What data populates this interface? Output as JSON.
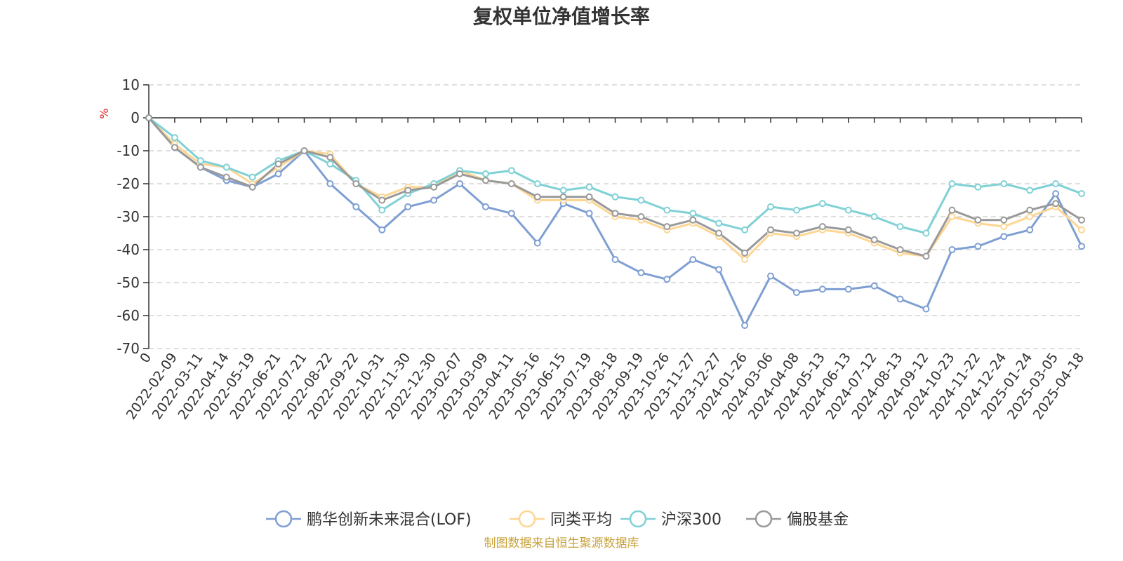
{
  "chart_data": {
    "type": "line",
    "title": "复权单位净值增长率",
    "ylabel": "%",
    "xlabel": "",
    "ylim": [
      -70,
      10
    ],
    "yticks": [
      10,
      0,
      -10,
      -20,
      -30,
      -40,
      -50,
      -60,
      -70
    ],
    "grid": true,
    "legend_position": "bottom-center",
    "categories": [
      "0",
      "2022-02-09",
      "2022-03-11",
      "2022-04-14",
      "2022-05-19",
      "2022-06-21",
      "2022-07-21",
      "2022-08-22",
      "2022-09-22",
      "2022-10-31",
      "2022-11-30",
      "2022-12-30",
      "2023-02-07",
      "2023-03-09",
      "2023-04-11",
      "2023-05-16",
      "2023-06-15",
      "2023-07-19",
      "2023-08-18",
      "2023-09-19",
      "2023-10-26",
      "2023-11-27",
      "2023-12-27",
      "2024-01-26",
      "2024-03-06",
      "2024-04-08",
      "2024-05-13",
      "2024-06-13",
      "2024-07-12",
      "2024-08-13",
      "2024-09-12",
      "2024-10-23",
      "2024-11-22",
      "2024-12-24",
      "2025-01-24",
      "2025-03-05",
      "2025-04-18"
    ],
    "series": [
      {
        "name": "鹏华创新未来混合(LOF)",
        "color": "#7f9fd3",
        "values": [
          0,
          -9,
          -15,
          -19,
          -21,
          -17,
          -10,
          -20,
          -27,
          -34,
          -27,
          -25,
          -20,
          -27,
          -29,
          -38,
          -26,
          -29,
          -43,
          -47,
          -49,
          -43,
          -46,
          -63,
          -48,
          -53,
          -52,
          -52,
          -51,
          -55,
          -58,
          -40,
          -39,
          -36,
          -34,
          -23,
          -39
        ]
      },
      {
        "name": "同类平均",
        "color": "#fdd692",
        "values": [
          0,
          -8,
          -14,
          -15,
          -20,
          -15,
          -10,
          -11,
          -20,
          -24,
          -21,
          -21,
          -16,
          -19,
          -20,
          -25,
          -25,
          -25,
          -30,
          -31,
          -34,
          -32,
          -36,
          -43,
          -35,
          -36,
          -34,
          -35,
          -38,
          -41,
          -42,
          -30,
          -32,
          -33,
          -30,
          -27,
          -34
        ]
      },
      {
        "name": "沪深300",
        "color": "#7fd1d6",
        "values": [
          0,
          -6,
          -13,
          -15,
          -18,
          -13,
          -10,
          -14,
          -19,
          -28,
          -23,
          -20,
          -16,
          -17,
          -16,
          -20,
          -22,
          -21,
          -24,
          -25,
          -28,
          -29,
          -32,
          -34,
          -27,
          -28,
          -26,
          -28,
          -30,
          -33,
          -35,
          -20,
          -21,
          -20,
          -22,
          -20,
          -23
        ]
      },
      {
        "name": "偏股基金",
        "color": "#999999",
        "values": [
          0,
          -9,
          -15,
          -18,
          -21,
          -14,
          -10,
          -12,
          -20,
          -25,
          -22,
          -21,
          -17,
          -19,
          -20,
          -24,
          -24,
          -24,
          -29,
          -30,
          -33,
          -31,
          -35,
          -41,
          -34,
          -35,
          -33,
          -34,
          -37,
          -40,
          -42,
          -28,
          -31,
          -31,
          -28,
          -26,
          -31
        ]
      }
    ]
  },
  "footer": {
    "source": "制图数据来自恒生聚源数据库"
  }
}
